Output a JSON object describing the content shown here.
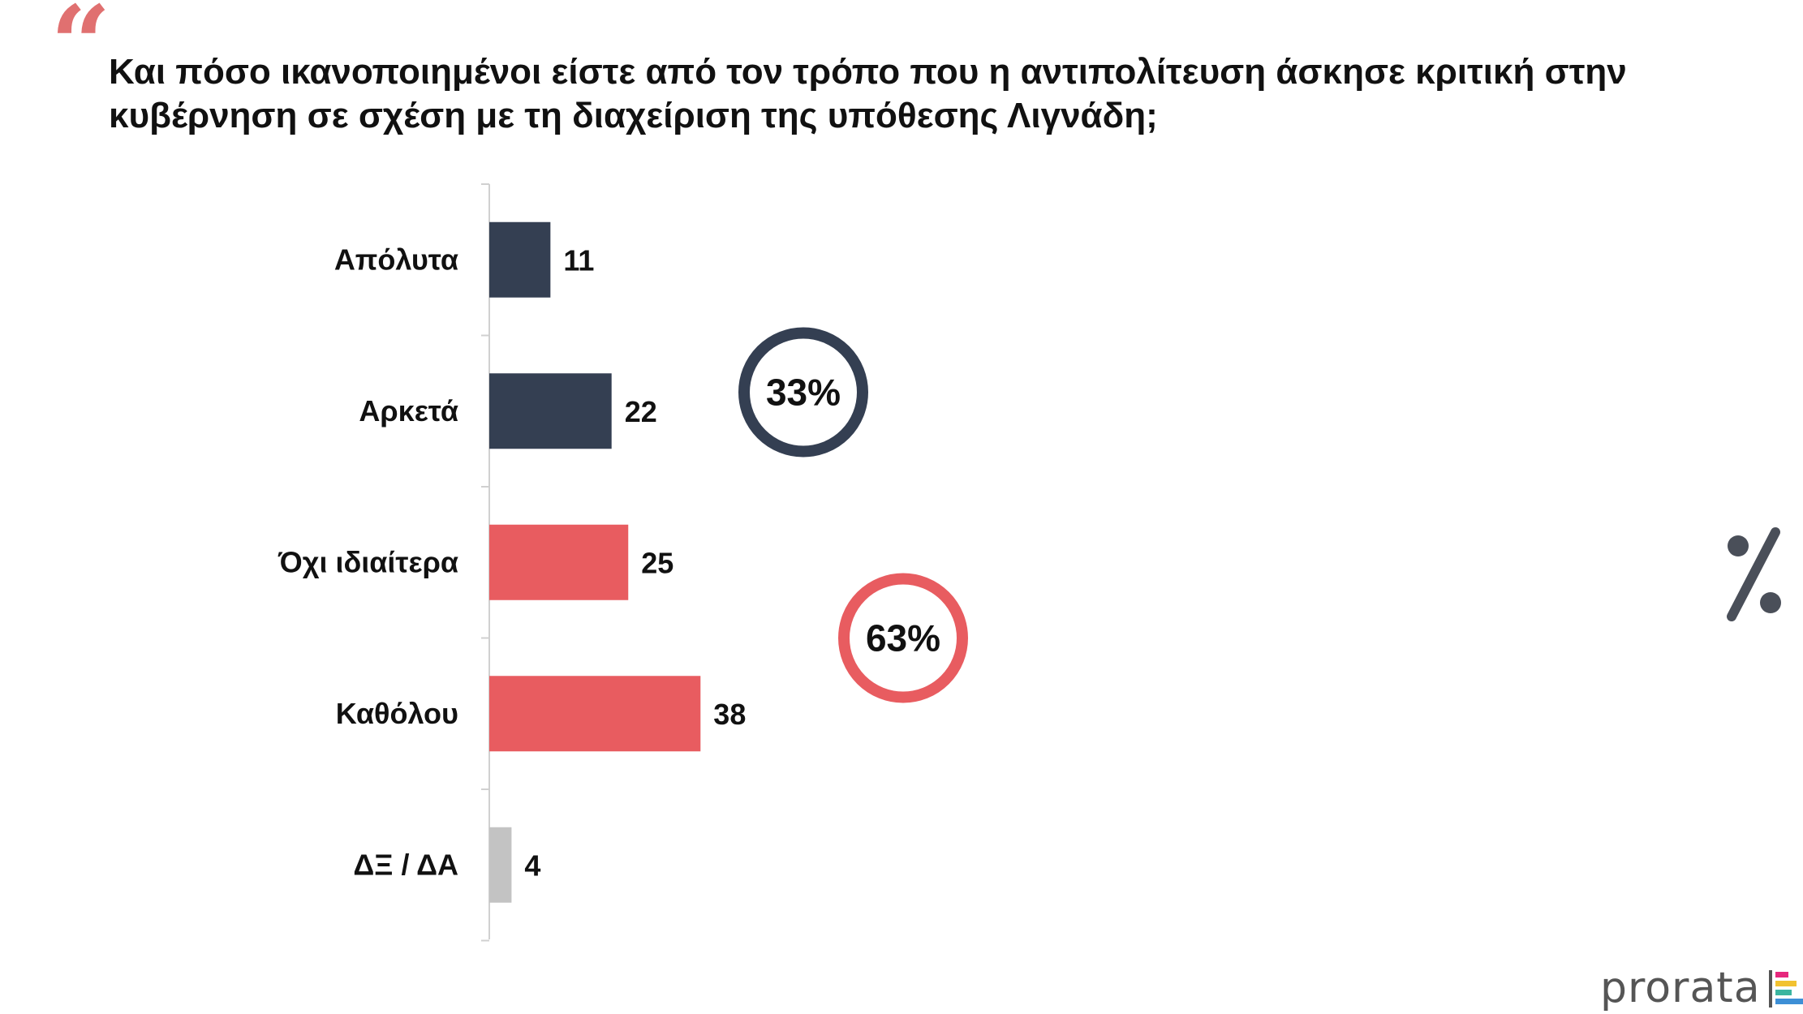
{
  "question": {
    "quote_mark": "“",
    "text": "Και πόσο ικανοποιημένοι είστε από τον τρόπο που η αντιπολίτευση άσκησε κριτική στην κυβέρνηση σε σχέση με τη διαχείριση της υπόθεσης Λιγνάδη;"
  },
  "chart_data": {
    "type": "bar",
    "orientation": "horizontal",
    "categories": [
      "Απόλυτα",
      "Αρκετά",
      "Όχι ιδιαίτερα",
      "Καθόλου",
      "ΔΞ / ΔΑ"
    ],
    "values": [
      11,
      22,
      25,
      38,
      4
    ],
    "value_labels": [
      "11",
      "22",
      "25",
      "38",
      "4"
    ],
    "bar_colors": [
      "#343f52",
      "#343f52",
      "#e85c60",
      "#e85c60",
      "#c3c3c3"
    ],
    "xlim": [
      0,
      100
    ],
    "grid": false,
    "annotations": [
      {
        "label": "33%",
        "group": [
          "Απόλυτα",
          "Αρκετά"
        ],
        "color": "#343f52"
      },
      {
        "label": "63%",
        "group": [
          "Όχι ιδιαίτερα",
          "Καθόλου"
        ],
        "color": "#e85c60"
      }
    ]
  },
  "decor": {
    "percent_icon": "percent-icon",
    "accent_dark": "#4a4f59"
  },
  "brand": {
    "name": "prorata",
    "mark_colors": [
      "#e6287d",
      "#f2c230",
      "#3bb5a0",
      "#3d8fd6"
    ]
  }
}
